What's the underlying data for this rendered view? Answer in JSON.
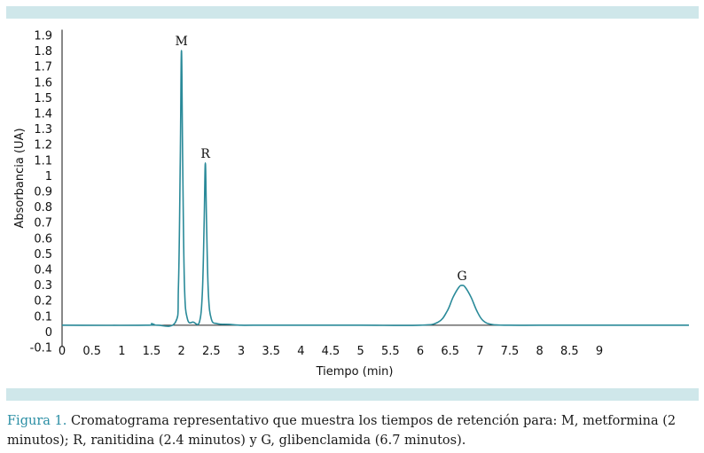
{
  "caption": {
    "label": "Figura 1.",
    "text": "Cromatograma representativo que muestra los tiempos de retención para: M, metformina (2 minutos); R, ranitidina (2.4 minutos) y G, glibenclamida (6.7 minutos)."
  },
  "colors": {
    "signal": "#2a8a99",
    "baseline": "#222222",
    "band": "#cfe7ea",
    "caption_label": "#2a8ea4"
  },
  "chart_data": {
    "type": "line",
    "title": "",
    "xlabel": "Tiempo (min)",
    "ylabel": "Absorbancia (UA)",
    "xlim": [
      0,
      10.5
    ],
    "ylim": [
      -0.1,
      1.9
    ],
    "x_ticks": [
      0,
      0.5,
      1,
      1.5,
      2,
      2.5,
      3,
      3.5,
      4,
      4.5,
      5,
      5.5,
      6,
      6.5,
      7,
      7.5,
      8,
      8.5,
      9
    ],
    "x_tick_labels": [
      "0",
      "0.5",
      "1",
      "1.5",
      "2",
      "2.5",
      "3",
      "3.5",
      "4",
      "4.5",
      "5",
      "5.5",
      "6",
      "6.5",
      "7",
      "7.5",
      "8",
      "8.5",
      "9"
    ],
    "y_ticks": [
      -0.1,
      0,
      0.1,
      0.2,
      0.3,
      0.4,
      0.5,
      0.6,
      0.7,
      0.8,
      0.9,
      1,
      1.1,
      1.2,
      1.3,
      1.4,
      1.5,
      1.6,
      1.7,
      1.8,
      1.9
    ],
    "y_tick_labels": [
      "-0.1",
      "0",
      "0.1",
      "0.2",
      "0.3",
      "0.4",
      "0.5",
      "0.6",
      "0.7",
      "0.8",
      "0.9",
      "1",
      "1.1",
      "1.2",
      "1.3",
      "1.4",
      "1.5",
      "1.6",
      "1.7",
      "1.8",
      "1.9"
    ],
    "grid": false,
    "baseline_value": 0.04,
    "peaks": [
      {
        "label": "M",
        "x": 2.0,
        "height": 1.76
      },
      {
        "label": "R",
        "x": 2.4,
        "height": 1.04
      },
      {
        "label": "G",
        "x": 6.7,
        "height": 0.255
      }
    ],
    "series": [
      {
        "x": [
          0,
          1.4,
          1.5,
          1.6,
          1.9,
          1.95,
          1.98,
          2.0,
          2.02,
          2.05,
          2.1,
          2.2,
          2.3,
          2.35,
          2.38,
          2.4,
          2.42,
          2.45,
          2.5,
          2.6,
          2.8,
          3.0,
          3.2,
          4.0,
          5.0,
          6.0,
          6.3,
          6.45,
          6.55,
          6.65,
          6.7,
          6.75,
          6.85,
          6.95,
          7.05,
          7.2,
          7.5,
          8.0,
          9.0,
          10.5
        ],
        "y": [
          0.04,
          0.04,
          0.05,
          0.04,
          0.06,
          0.3,
          1.1,
          1.8,
          1.1,
          0.3,
          0.08,
          0.06,
          0.06,
          0.25,
          0.7,
          1.08,
          0.7,
          0.25,
          0.08,
          0.05,
          0.045,
          0.04,
          0.04,
          0.04,
          0.04,
          0.04,
          0.06,
          0.13,
          0.22,
          0.285,
          0.295,
          0.285,
          0.22,
          0.13,
          0.07,
          0.045,
          0.04,
          0.04,
          0.04,
          0.04
        ]
      }
    ]
  }
}
